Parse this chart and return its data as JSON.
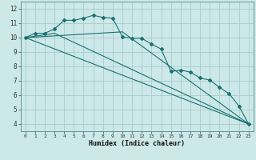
{
  "xlabel": "Humidex (Indice chaleur)",
  "bg_color": "#cce8e8",
  "grid_color": "#aacccc",
  "line_color": "#1a7070",
  "xlim": [
    -0.5,
    23.5
  ],
  "ylim": [
    3.5,
    12.5
  ],
  "yticks": [
    4,
    5,
    6,
    7,
    8,
    9,
    10,
    11,
    12
  ],
  "xticks": [
    0,
    1,
    2,
    3,
    4,
    5,
    6,
    7,
    8,
    9,
    10,
    11,
    12,
    13,
    14,
    15,
    16,
    17,
    18,
    19,
    20,
    21,
    22,
    23
  ],
  "series1_x": [
    0,
    1,
    2,
    3,
    4,
    5,
    6,
    7,
    8,
    9,
    10,
    11,
    12,
    13,
    14,
    15,
    16,
    17,
    18,
    19,
    20,
    21,
    22,
    23
  ],
  "series1_y": [
    10.0,
    10.3,
    10.3,
    10.6,
    11.2,
    11.2,
    11.35,
    11.55,
    11.4,
    11.35,
    10.05,
    9.95,
    9.95,
    9.55,
    9.2,
    7.65,
    7.75,
    7.6,
    7.2,
    7.05,
    6.55,
    6.1,
    5.25,
    4.0
  ],
  "series2_x": [
    0,
    23
  ],
  "series2_y": [
    10.0,
    4.0
  ],
  "series3_x": [
    0,
    3,
    23
  ],
  "series3_y": [
    10.0,
    10.3,
    4.0
  ],
  "series4_x": [
    0,
    10,
    23
  ],
  "series4_y": [
    10.0,
    10.4,
    4.0
  ]
}
